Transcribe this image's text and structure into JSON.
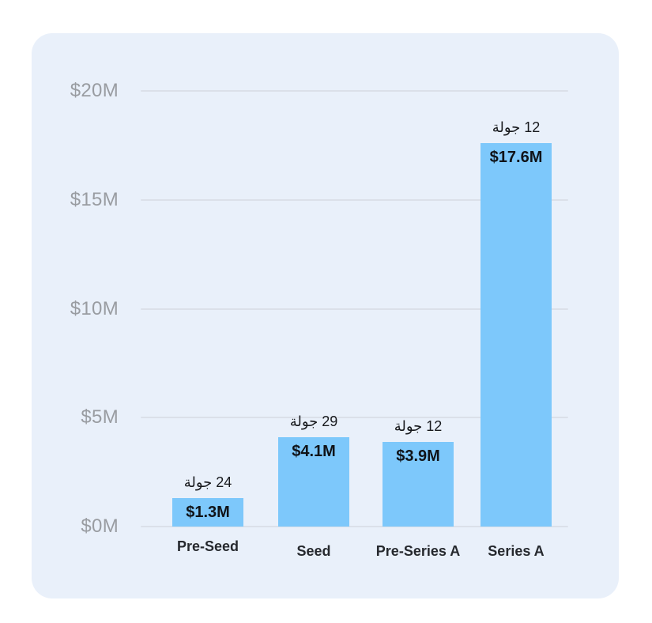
{
  "colors": {
    "page_bg": "#FFFFFF",
    "card_bg": "#E9F0FA",
    "bar_fill": "#7DC8FB",
    "grid_line": "#DBE0E9",
    "axis_label": "#999CA1",
    "value_label": "#101318",
    "rounds_label": "#17191D",
    "category_label": "#26292E"
  },
  "chart_data": {
    "type": "bar",
    "categories": [
      "Pre-Seed",
      "Seed",
      "Pre-Series A",
      "Series A"
    ],
    "values": [
      1.3,
      4.1,
      3.9,
      17.6
    ],
    "ylim": [
      0,
      20
    ],
    "grid": true,
    "legend": "none",
    "y_ticks": [
      {
        "value": 20,
        "label": "$20M"
      },
      {
        "value": 15,
        "label": "$15M"
      },
      {
        "value": 10,
        "label": "$10M"
      },
      {
        "value": 5,
        "label": "$5M"
      },
      {
        "value": 0,
        "label": "$0M"
      }
    ],
    "bars": [
      {
        "category": "Pre-Seed",
        "value": 1.3,
        "value_label": "$1.3M",
        "rounds": 24,
        "rounds_label": "24 جولة"
      },
      {
        "category": "Seed",
        "value": 4.1,
        "value_label": "$4.1M",
        "rounds": 29,
        "rounds_label": "29 جولة"
      },
      {
        "category": "Pre-Series A",
        "value": 3.9,
        "value_label": "$3.9M",
        "rounds": 12,
        "rounds_label": "12 جولة"
      },
      {
        "category": "Series A",
        "value": 17.6,
        "value_label": "$17.6M",
        "rounds": 12,
        "rounds_label": "12 جولة"
      }
    ]
  }
}
